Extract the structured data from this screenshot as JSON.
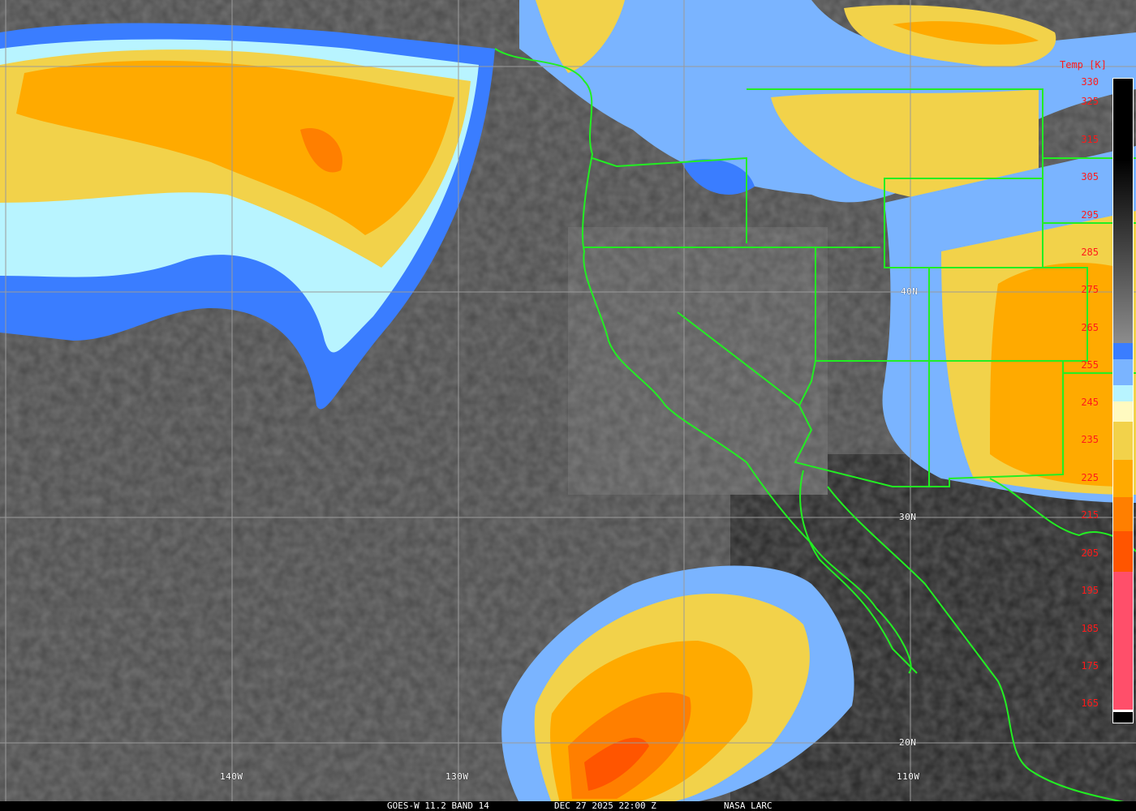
{
  "footer": {
    "satellite": "GOES-W 11.2 BAND 14",
    "datetime": "DEC 27 2025 22:00 Z",
    "credit": "NASA LARC"
  },
  "grid_labels": {
    "lat": [
      "40N",
      "30N",
      "20N"
    ],
    "lon": [
      "140W",
      "130W",
      "110W"
    ]
  },
  "legend": {
    "title": "Temp [K]",
    "ticks": [
      "330",
      "325",
      "315",
      "305",
      "295",
      "285",
      "275",
      "265",
      "255",
      "245",
      "235",
      "225",
      "215",
      "205",
      "195",
      "185",
      "175",
      "165"
    ],
    "colors": {
      "warm_gray_top": "#000000",
      "gray_low": "#8c8c8c",
      "blue": "#3a7dff",
      "light_blue": "#7ab4ff",
      "cyan": "#b8f4ff",
      "pale_yellow": "#fffac0",
      "yellow": "#f2d24a",
      "orange_yellow": "#ffaa00",
      "orange": "#ff7f00",
      "red_orange": "#ff5500",
      "pink": "#ff4f6a"
    }
  },
  "map_colors": {
    "coastline": "#22ee22",
    "grid": "#9a9a9a",
    "label_text": "#ff1a1a"
  }
}
